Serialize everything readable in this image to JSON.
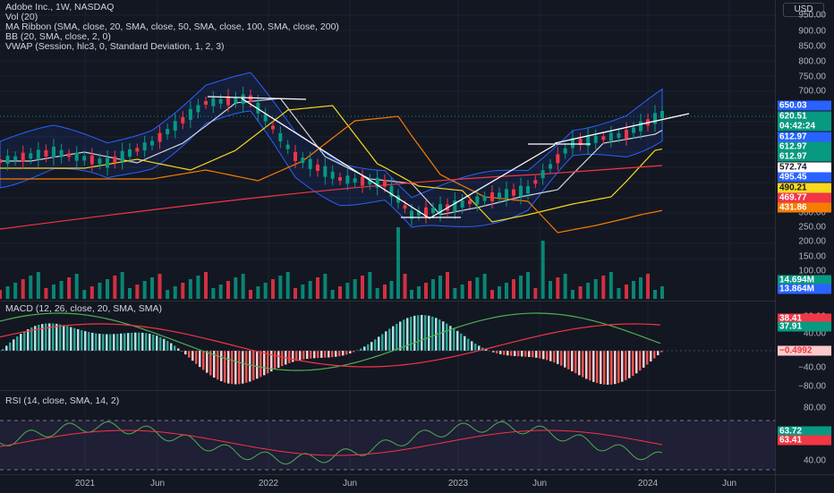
{
  "legend": {
    "title": "Adobe Inc., 1W, NASDAQ",
    "lines": [
      "Vol (20)",
      "MA Ribbon (SMA, close, 20, SMA, close, 50, SMA, close, 100, SMA, close, 200)",
      "BB (20, SMA, close, 2, 0)",
      "VWAP (Session, hlc3, 0, Standard Deviation, 1, 2, 3)"
    ]
  },
  "currency": "USD",
  "price_axis": [
    "950.00",
    "900.00",
    "850.00",
    "800.00",
    "750.00",
    "700.00",
    "650.00",
    "600.00",
    "550.00",
    "500.00",
    "450.00",
    "400.00",
    "350.00",
    "300.00",
    "250.00",
    "200.00",
    "150.00",
    "100.00"
  ],
  "price_badges": [
    {
      "text": "650.03",
      "color": "#2962ff"
    },
    {
      "text": "620.51",
      "color": "#089981"
    },
    {
      "text": "04:42:24",
      "color": "#089981"
    },
    {
      "text": "612.97",
      "color": "#2962ff"
    },
    {
      "text": "612.97",
      "color": "#089981"
    },
    {
      "text": "612.97",
      "color": "#089981"
    },
    {
      "text": "572.74",
      "color": "#ffffff",
      "fg": "#131722"
    },
    {
      "text": "495.45",
      "color": "#2962ff"
    },
    {
      "text": "490.21",
      "color": "#f7d81c",
      "fg": "#131722"
    },
    {
      "text": "469.77",
      "color": "#f23645"
    },
    {
      "text": "431.86",
      "color": "#f57c00"
    }
  ],
  "volume_badges": [
    {
      "text": "14.694M",
      "color": "#089981"
    },
    {
      "text": "13.864M",
      "color": "#2962ff"
    }
  ],
  "macd": {
    "legend": "MACD (12, 26, close, 20, SMA, SMA)",
    "axis": [
      "80.00",
      "40.00",
      "0.00",
      "−40.00",
      "−80.00"
    ],
    "badges": [
      {
        "text": "38.41",
        "color": "#f23645"
      },
      {
        "text": "37.91",
        "color": "#089981"
      },
      {
        "text": "−0.4992",
        "color": "#fccbcd",
        "fg": "#f23645"
      }
    ]
  },
  "rsi": {
    "legend": "RSI (14, close, SMA, 14, 2)",
    "axis": [
      "80.00",
      "40.00"
    ],
    "badges": [
      {
        "text": "63.72",
        "color": "#089981"
      },
      {
        "text": "63.41",
        "color": "#f23645"
      }
    ]
  },
  "time_axis": [
    "2021",
    "Jun",
    "2022",
    "Jun",
    "2023",
    "Jun",
    "2024",
    "Jun"
  ]
}
